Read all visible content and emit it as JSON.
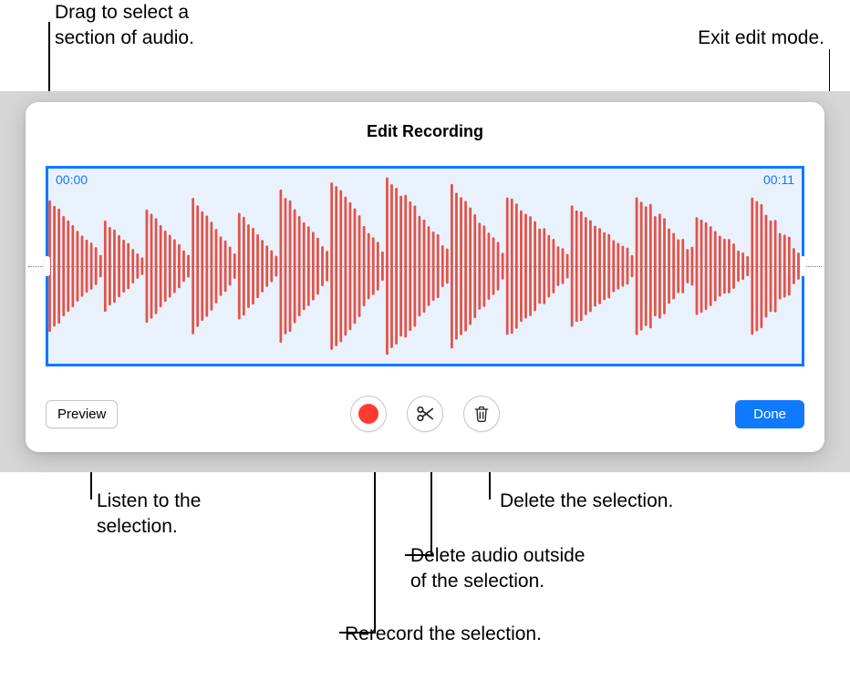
{
  "callouts": {
    "drag_select": "Drag to select a\nsection of audio.",
    "exit_edit": "Exit edit mode.",
    "listen": "Listen to the\nselection.",
    "delete_sel": "Delete the selection.",
    "crop": "Delete audio outside\nof the selection.",
    "rerecord": "Rerecord the selection."
  },
  "editor": {
    "title": "Edit Recording",
    "time_start": "00:00",
    "time_end": "00:11",
    "preview_label": "Preview",
    "done_label": "Done"
  },
  "colors": {
    "selection": "#0f79ff",
    "waveform": "#e2534b",
    "waveform_bg": "#e9f2fc"
  },
  "waveform": {
    "segments": [
      {
        "peak": 0.68,
        "decay": 0.12,
        "bars": 12
      },
      {
        "peak": 0.45,
        "decay": 0.1,
        "bars": 9
      },
      {
        "peak": 0.58,
        "decay": 0.12,
        "bars": 10
      },
      {
        "peak": 0.7,
        "decay": 0.12,
        "bars": 10
      },
      {
        "peak": 0.55,
        "decay": 0.1,
        "bars": 9
      },
      {
        "peak": 0.78,
        "decay": 0.15,
        "bars": 11
      },
      {
        "peak": 0.88,
        "decay": 0.22,
        "bars": 12
      },
      {
        "peak": 0.92,
        "decay": 0.28,
        "bars": 14
      },
      {
        "peak": 0.8,
        "decay": 0.25,
        "bars": 12
      },
      {
        "peak": 0.7,
        "decay": 0.2,
        "bars": 14
      },
      {
        "peak": 0.62,
        "decay": 0.18,
        "bars": 14
      },
      {
        "peak": 0.72,
        "decay": 0.3,
        "bars": 13
      },
      {
        "peak": 0.5,
        "decay": 0.18,
        "bars": 12
      },
      {
        "peak": 0.68,
        "decay": 0.3,
        "bars": 11
      }
    ]
  }
}
